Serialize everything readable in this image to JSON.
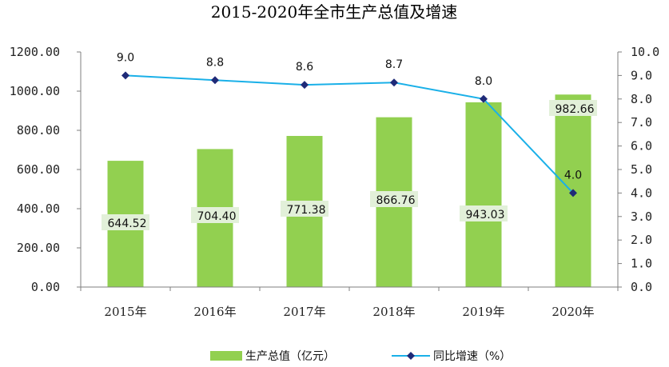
{
  "chart_data": {
    "type": "bar+line",
    "title": "2015-2020年全市生产总值及增速",
    "categories": [
      "2015年",
      "2016年",
      "2017年",
      "2018年",
      "2019年",
      "2020年"
    ],
    "series": [
      {
        "name": "生产总值（亿元）",
        "type": "bar",
        "axis": "left",
        "values": [
          644.52,
          704.4,
          771.38,
          866.76,
          943.03,
          982.66
        ],
        "labels": [
          "644.52",
          "704.40",
          "771.38",
          "866.76",
          "943.03",
          "982.66"
        ],
        "color": "#92d050"
      },
      {
        "name": "同比增速（%）",
        "type": "line",
        "axis": "right",
        "values": [
          9.0,
          8.8,
          8.6,
          8.7,
          8.0,
          4.0
        ],
        "labels": [
          "9.0",
          "8.8",
          "8.6",
          "8.7",
          "8.0",
          "4.0"
        ],
        "color": "#1ab0e8",
        "marker_color": "#1f2a78"
      }
    ],
    "y_left": {
      "ylim": [
        0,
        1200
      ],
      "ticks": [
        0,
        200,
        400,
        600,
        800,
        1000,
        1200
      ],
      "tick_labels": [
        "0.00",
        "200.00",
        "400.00",
        "600.00",
        "800.00",
        "1000.00",
        "1200.00"
      ]
    },
    "y_right": {
      "ylim": [
        0,
        10
      ],
      "ticks": [
        0,
        1,
        2,
        3,
        4,
        5,
        6,
        7,
        8,
        9,
        10
      ],
      "tick_labels": [
        "0.0",
        "1.0",
        "2.0",
        "3.0",
        "4.0",
        "5.0",
        "6.0",
        "7.0",
        "8.0",
        "9.0",
        "10.0"
      ]
    },
    "grid": false,
    "legend_position": "bottom",
    "label_background": "#e2f0d9"
  }
}
